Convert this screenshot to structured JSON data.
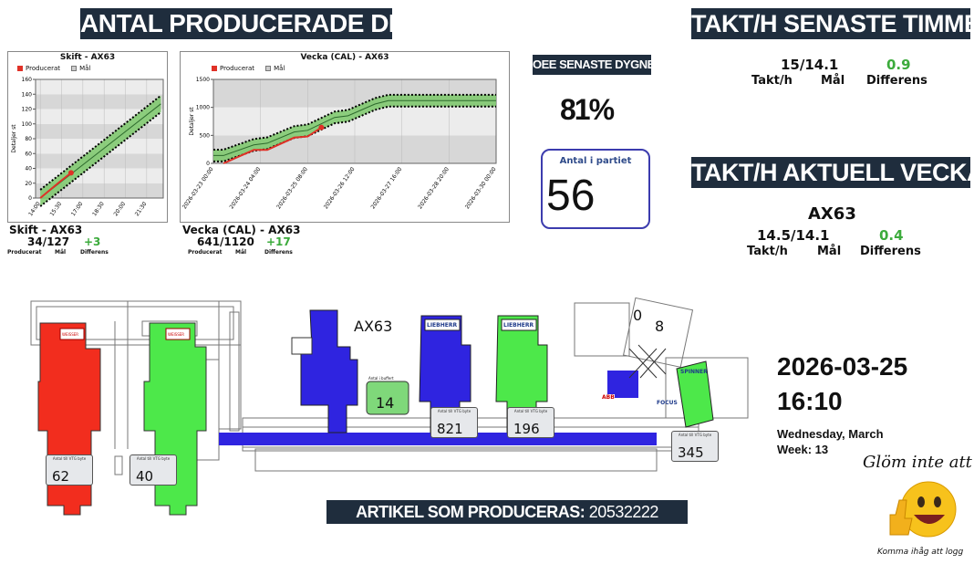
{
  "header": {
    "produced_title": "ANTAL PRODUCERADE DETALJER",
    "takt_hour_title": "TAKT/H SENASTE TIMMEN",
    "takt_week_title": "TAKT/H AKTUELL VECKA",
    "oee_title": "OEE SENASTE DYGNET",
    "article_label": "ARTIKEL SOM PRODUCERAS:",
    "article_value": "20532222"
  },
  "oee": {
    "value": "81%"
  },
  "batch": {
    "label": "Antal i partiet",
    "value": "56"
  },
  "takt_hour": {
    "value": "15/14.1",
    "diff": "0.9",
    "label_takt": "Takt/h",
    "label_goal": "Mål",
    "label_diff": "Differens"
  },
  "takt_week": {
    "machine": "AX63",
    "value": "14.5/14.1",
    "diff": "0.4",
    "label_takt": "Takt/h",
    "label_goal": "Mål",
    "label_diff": "Differens"
  },
  "shift_summary": {
    "title": "Skift - AX63",
    "value": "34/127",
    "diff": "+3",
    "l1": "Producerat",
    "l2": "Mål",
    "l3": "Differens"
  },
  "week_summary": {
    "title": "Vecka (CAL) - AX63",
    "value": "641/1120",
    "diff": "+17",
    "l1": "Producerat",
    "l2": "Mål",
    "l3": "Differens"
  },
  "datetime": {
    "date": "2026-03-25",
    "time": "16:10",
    "weekday": "Wednesday, March",
    "week": "Week: 13"
  },
  "reminder": {
    "text": "Glöm inte att",
    "caption": "Komma ihåg att logg"
  },
  "plant": {
    "machine_label": "AX63",
    "buffer_label": "Antal i buffert",
    "buffer_value": "14",
    "counter_caption": "Antal till VTG byte",
    "counters": [
      "62",
      "40",
      "821",
      "196",
      "345"
    ],
    "gauge_left": "0",
    "gauge_right": "8",
    "brand_weisser": "WEISSER",
    "brand_liebherr": "LIEBHERR",
    "brand_spinner": "SPINNER",
    "brand_focus": "FOCUS",
    "brand_abb": "ABB"
  },
  "colors": {
    "banner_bg": "#1f2d3d",
    "produced": "#e03127",
    "goal_band": "#7bc86a",
    "positive": "#3cab3c",
    "machine_blue": "#2f24e0",
    "machine_green": "#4de84a",
    "machine_red": "#f22d1e"
  },
  "chart_data": [
    {
      "type": "line",
      "title": "Skift - AX63",
      "xlabel": "",
      "ylabel": "Detaljer st",
      "legend": [
        "Producerat",
        "Mål"
      ],
      "x_ticks": [
        "14:00",
        "15:30",
        "17:00",
        "18:30",
        "20:00",
        "21:30"
      ],
      "ylim": [
        0,
        160
      ],
      "y_ticks": [
        0,
        20,
        40,
        60,
        80,
        100,
        120,
        140,
        160
      ],
      "series": [
        {
          "name": "Producerat",
          "x": [
            "14:00",
            "14:30",
            "15:15",
            "16:10"
          ],
          "values": [
            0,
            8,
            20,
            34
          ]
        },
        {
          "name": "Mål",
          "x": [
            "14:00",
            "22:30"
          ],
          "values": [
            0,
            127
          ]
        }
      ]
    },
    {
      "type": "line",
      "title": "Vecka (CAL) - AX63",
      "xlabel": "",
      "ylabel": "Detaljer st",
      "legend": [
        "Producerat",
        "Mål"
      ],
      "x_ticks": [
        "2026-03-23 00:00",
        "2026-03-24 04:00",
        "2026-03-25 08:00",
        "2026-03-26 12:00",
        "2026-03-27 16:00",
        "2026-03-28 20:00",
        "2026-03-30 00:00"
      ],
      "ylim": [
        0,
        1500
      ],
      "y_ticks": [
        0,
        500,
        1000,
        1500
      ],
      "series": [
        {
          "name": "Producerat",
          "x": [
            "2026-03-23 06:00",
            "2026-03-24 00:00",
            "2026-03-24 08:00",
            "2026-03-25 00:00",
            "2026-03-25 08:00",
            "2026-03-25 16:10"
          ],
          "values": [
            0,
            240,
            240,
            460,
            480,
            641
          ]
        },
        {
          "name": "Mål",
          "x": [
            "2026-03-23 00:00",
            "2026-03-23 06:00",
            "2026-03-24 00:00",
            "2026-03-24 08:00",
            "2026-03-25 00:00",
            "2026-03-25 08:00",
            "2026-03-26 00:00",
            "2026-03-26 08:00",
            "2026-03-27 00:00",
            "2026-03-27 08:00",
            "2026-03-28 00:00",
            "2026-03-30 00:00"
          ],
          "values": [
            140,
            140,
            330,
            360,
            560,
            590,
            820,
            850,
            1060,
            1120,
            1120,
            1120
          ]
        }
      ]
    }
  ]
}
